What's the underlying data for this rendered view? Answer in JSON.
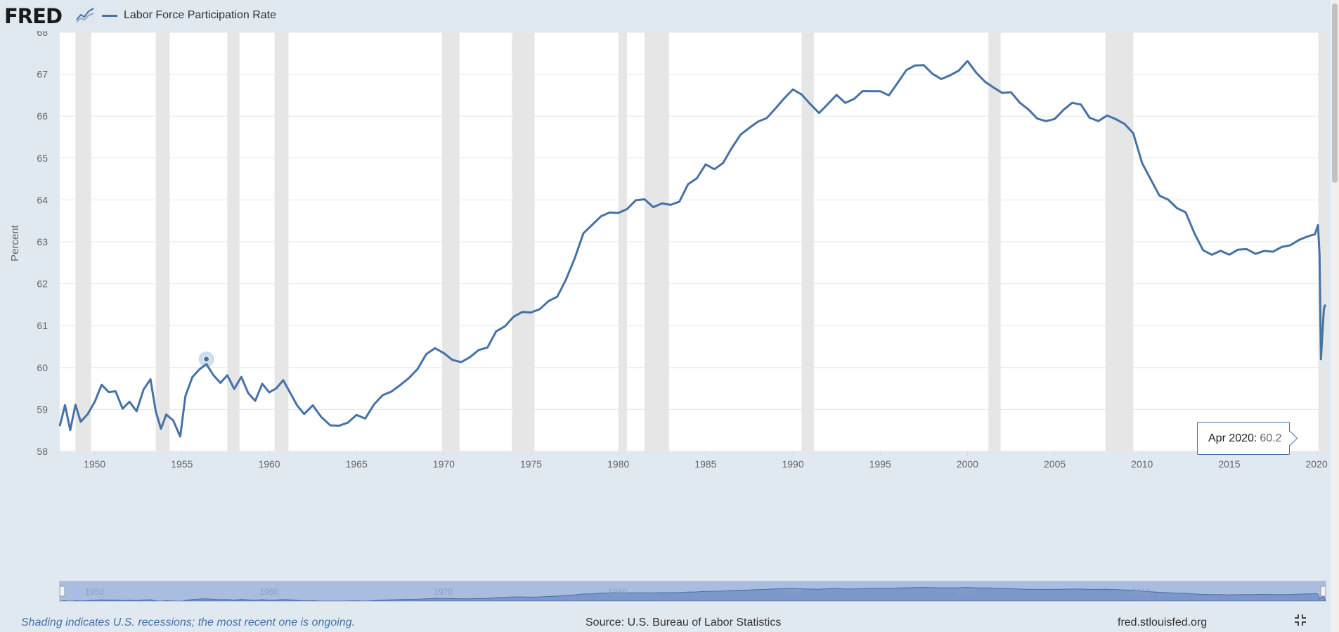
{
  "header": {
    "logo_text": "FRED",
    "logo_icon": "fred-chart-icon",
    "legend_label": "Labor Force Participation Rate"
  },
  "colors": {
    "series": "#4572a7",
    "recession": "#e6e6e6",
    "background": "#e1e9f0",
    "navigator": "#aabce0"
  },
  "chart_data": {
    "type": "line",
    "title": "Labor Force Participation Rate",
    "xlabel": "",
    "ylabel": "Percent",
    "ylim": [
      58,
      68
    ],
    "xlim": [
      1948.0,
      2020.6
    ],
    "yticks": [
      "58",
      "59",
      "60",
      "61",
      "62",
      "63",
      "64",
      "65",
      "66",
      "67",
      "68"
    ],
    "xticks": [
      "1950",
      "1955",
      "1960",
      "1965",
      "1970",
      "1975",
      "1980",
      "1985",
      "1990",
      "1995",
      "2000",
      "2005",
      "2010",
      "2015",
      "2020"
    ],
    "grid": true,
    "legend": "top-left",
    "recessions": [
      [
        1948.9,
        1949.8
      ],
      [
        1953.5,
        1954.3
      ],
      [
        1957.6,
        1958.3
      ],
      [
        1960.3,
        1961.1
      ],
      [
        1969.9,
        1970.9
      ],
      [
        1973.9,
        1975.2
      ],
      [
        1980.0,
        1980.5
      ],
      [
        1981.5,
        1982.9
      ],
      [
        1990.5,
        1991.2
      ],
      [
        2001.2,
        2001.9
      ],
      [
        2007.9,
        2009.5
      ],
      [
        2020.1,
        2020.6
      ]
    ],
    "series": [
      {
        "name": "Labor Force Participation Rate",
        "x": [
          1948.0,
          1948.3,
          1948.6,
          1948.9,
          1949.2,
          1949.6,
          1950.0,
          1950.4,
          1950.8,
          1951.2,
          1951.6,
          1952.0,
          1952.4,
          1952.8,
          1953.2,
          1953.5,
          1953.8,
          1954.1,
          1954.5,
          1954.9,
          1955.2,
          1955.6,
          1956.0,
          1956.4,
          1956.8,
          1957.2,
          1957.6,
          1958.0,
          1958.4,
          1958.8,
          1959.2,
          1959.6,
          1960.0,
          1960.4,
          1960.8,
          1961.2,
          1961.6,
          1962.0,
          1962.5,
          1963.0,
          1963.5,
          1964.0,
          1964.5,
          1965.0,
          1965.5,
          1966.0,
          1966.5,
          1967.0,
          1967.5,
          1968.0,
          1968.5,
          1969.0,
          1969.5,
          1970.0,
          1970.5,
          1971.0,
          1971.5,
          1972.0,
          1972.5,
          1973.0,
          1973.5,
          1974.0,
          1974.5,
          1975.0,
          1975.5,
          1976.0,
          1976.5,
          1977.0,
          1977.5,
          1978.0,
          1978.5,
          1979.0,
          1979.5,
          1980.0,
          1980.5,
          1981.0,
          1981.5,
          1982.0,
          1982.5,
          1983.0,
          1983.5,
          1984.0,
          1984.5,
          1985.0,
          1985.5,
          1986.0,
          1986.5,
          1987.0,
          1987.5,
          1988.0,
          1988.5,
          1989.0,
          1989.5,
          1990.0,
          1990.5,
          1991.0,
          1991.5,
          1992.0,
          1992.5,
          1993.0,
          1993.5,
          1994.0,
          1994.5,
          1995.0,
          1995.5,
          1996.0,
          1996.5,
          1997.0,
          1997.5,
          1998.0,
          1998.5,
          1999.0,
          1999.5,
          2000.0,
          2000.5,
          2001.0,
          2001.5,
          2002.0,
          2002.5,
          2003.0,
          2003.5,
          2004.0,
          2004.5,
          2005.0,
          2005.5,
          2006.0,
          2006.5,
          2007.0,
          2007.5,
          2008.0,
          2008.5,
          2009.0,
          2009.5,
          2010.0,
          2010.5,
          2011.0,
          2011.5,
          2012.0,
          2012.5,
          2013.0,
          2013.5,
          2014.0,
          2014.5,
          2015.0,
          2015.5,
          2016.0,
          2016.5,
          2017.0,
          2017.5,
          2018.0,
          2018.5,
          2019.0,
          2019.5,
          2019.9,
          2020.08,
          2020.17,
          2020.25,
          2020.33,
          2020.42,
          2020.5
        ],
        "values": [
          58.6,
          59.0,
          58.4,
          59.1,
          58.8,
          59.0,
          59.2,
          59.5,
          59.3,
          59.4,
          59.1,
          59.3,
          59.0,
          59.4,
          59.6,
          58.9,
          58.6,
          59.0,
          58.8,
          58.3,
          59.2,
          59.7,
          60.0,
          60.2,
          59.9,
          59.6,
          59.7,
          59.4,
          59.8,
          59.5,
          59.3,
          59.6,
          59.3,
          59.4,
          59.7,
          59.5,
          59.2,
          58.9,
          59.0,
          58.7,
          58.6,
          58.7,
          58.8,
          58.9,
          58.7,
          59.0,
          59.3,
          59.5,
          59.7,
          59.8,
          59.9,
          60.2,
          60.4,
          60.4,
          60.3,
          60.2,
          60.2,
          60.3,
          60.4,
          60.9,
          61.1,
          61.3,
          61.3,
          61.2,
          61.3,
          61.6,
          61.8,
          62.2,
          62.6,
          63.1,
          63.3,
          63.6,
          63.8,
          63.8,
          63.8,
          63.9,
          63.9,
          63.8,
          64.0,
          64.0,
          64.0,
          64.3,
          64.4,
          64.8,
          64.8,
          65.0,
          65.3,
          65.5,
          65.6,
          65.8,
          66.0,
          66.3,
          66.5,
          66.6,
          66.4,
          66.2,
          66.1,
          66.4,
          66.6,
          66.3,
          66.3,
          66.5,
          66.6,
          66.7,
          66.6,
          66.8,
          67.0,
          67.1,
          67.2,
          67.1,
          67.0,
          67.0,
          67.0,
          67.2,
          67.0,
          66.9,
          66.8,
          66.6,
          66.5,
          66.2,
          66.1,
          66.0,
          66.0,
          66.0,
          66.1,
          66.2,
          66.2,
          66.0,
          66.0,
          66.1,
          65.9,
          65.7,
          65.5,
          64.9,
          64.6,
          64.2,
          64.0,
          63.7,
          63.6,
          63.2,
          62.9,
          62.8,
          62.8,
          62.6,
          62.7,
          62.8,
          62.8,
          62.9,
          62.8,
          62.8,
          62.8,
          63.0,
          63.2,
          63.3,
          63.4,
          62.7,
          60.2,
          60.8,
          61.4,
          61.5
        ]
      }
    ]
  },
  "tooltip": {
    "date": "Apr 2020:",
    "value": "60.2"
  },
  "navigator": {
    "labels": [
      "1950",
      "1960",
      "1970",
      "1980",
      "1990",
      "2000",
      "2010"
    ]
  },
  "footer": {
    "recession_note": "Shading indicates U.S. recessions; the most recent one is ongoing.",
    "source": "Source: U.S. Bureau of Labor Statistics",
    "site": "fred.stlouisfed.org"
  }
}
